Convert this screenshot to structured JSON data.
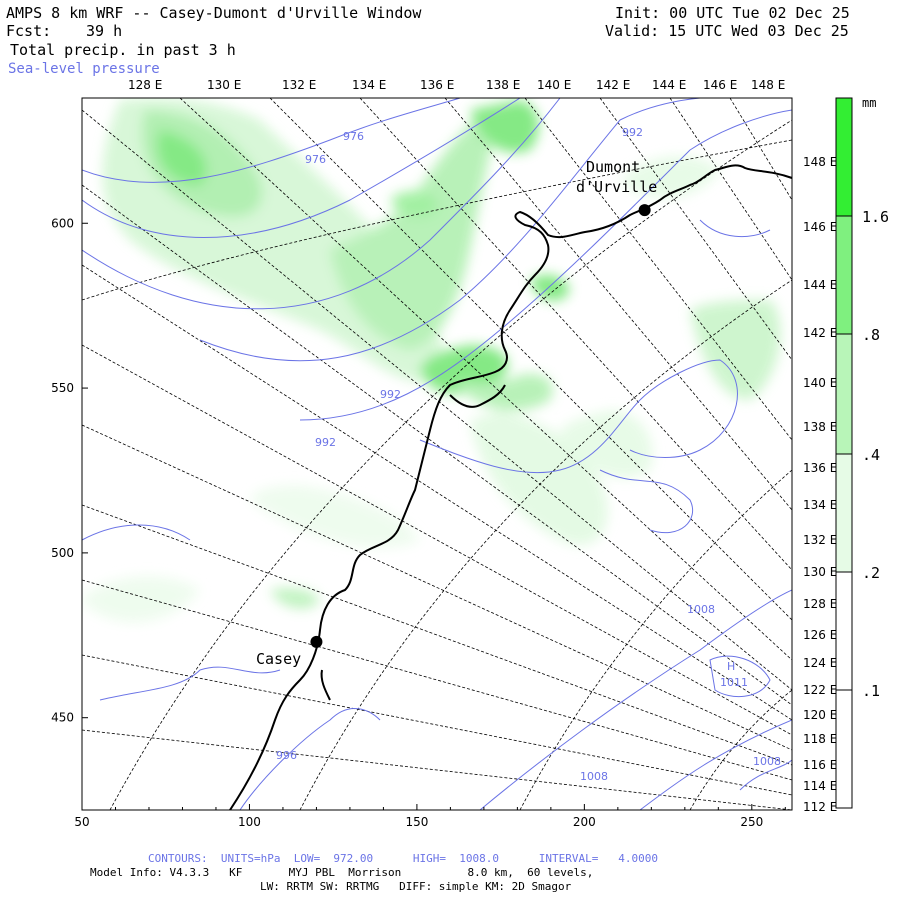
{
  "header": {
    "title": "AMPS 8 km WRF -- Casey-Dumont d'Urville Window",
    "fcst_label": "Fcst:",
    "fcst_value": "39 h",
    "field": "Total precip. in past 3 h",
    "overlay": "Sea-level pressure",
    "init": "Init: 00 UTC Tue 02 Dec 25",
    "valid": "Valid: 15 UTC Wed 03 Dec 25"
  },
  "map": {
    "top_lon_labels": [
      "128 E",
      "130 E",
      "132 E",
      "134 E",
      "136 E",
      "138 E",
      "140 E",
      "142 E",
      "144 E",
      "146 E",
      "148 E"
    ],
    "right_lon_labels": [
      "148 E",
      "146 E",
      "144 E",
      "142 E",
      "140 E",
      "138 E",
      "136 E",
      "134 E",
      "132 E",
      "130 E",
      "128 E",
      "126 E",
      "124 E",
      "122 E",
      "120 E",
      "118 E",
      "116 E",
      "114 E",
      "112 E"
    ],
    "x_ticks": [
      50,
      100,
      150,
      200,
      250
    ],
    "y_ticks": [
      600,
      550,
      500,
      450
    ],
    "x_range": [
      50,
      262
    ],
    "y_range": [
      422,
      638
    ],
    "stations": [
      {
        "name_line1": "Dumont",
        "name_line2": "d'Urville",
        "x": 218,
        "y": 604
      },
      {
        "name_line1": "Casey",
        "name_line2": "",
        "x": 120,
        "y": 473
      }
    ],
    "pressure_labels": [
      "976",
      "976",
      "992",
      "992",
      "992",
      "1008",
      "1008",
      "1008",
      "H",
      "1011",
      "996"
    ],
    "pressure_color": "#6b74e6",
    "coast_color": "#000000"
  },
  "colorbar": {
    "unit": "mm",
    "labels": [
      "1.6",
      ".8",
      ".4",
      ".2",
      ".1"
    ],
    "colors": [
      "#33ee33",
      "#7ff07f",
      "#b8f5b8",
      "#e6fbe6",
      "#ffffff"
    ]
  },
  "footer": {
    "contours": "CONTOURS:  UNITS=hPa  LOW=  972.00      HIGH=  1008.0      INTERVAL=   4.0000",
    "model_info": "Model Info: V4.3.3   KF       MYJ PBL  Morrison          8.0 km,  60 levels,",
    "model_info2": "LW: RRTM SW: RRTMG   DIFF: simple KM: 2D Smagor"
  }
}
